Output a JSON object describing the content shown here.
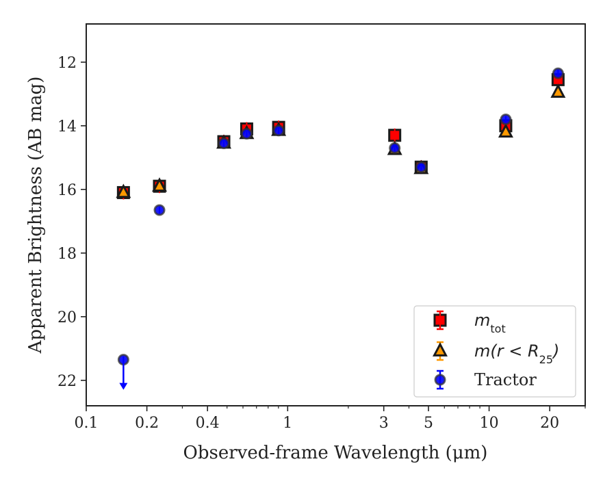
{
  "chart_data": {
    "type": "scatter",
    "xlabel": "Observed-frame Wavelength (μm)",
    "ylabel": "Apparent Brightness (AB mag)",
    "x_scale": "log",
    "y_inverted": true,
    "xlim": [
      0.1,
      30
    ],
    "ylim": [
      22.8,
      10.8
    ],
    "x_ticks": [
      0.1,
      0.2,
      0.4,
      1,
      3,
      5,
      10,
      20
    ],
    "x_tick_labels": [
      "0.1",
      "0.2",
      "0.4",
      "1",
      "3",
      "5",
      "10",
      "20"
    ],
    "y_ticks": [
      12,
      14,
      16,
      18,
      20,
      22
    ],
    "y_tick_labels": [
      "12",
      "14",
      "16",
      "18",
      "20",
      "22"
    ],
    "grid": false,
    "legend_position": "lower-right",
    "series": [
      {
        "name": "m_tot",
        "legend_label": "m",
        "legend_sub": "tot",
        "marker": "square",
        "color": "#ff0000",
        "edgecolor": "#1a1a1a",
        "x": [
          0.153,
          0.231,
          0.482,
          0.626,
          0.902,
          3.4,
          4.6,
          12.1,
          22.0
        ],
        "y": [
          16.1,
          15.9,
          14.5,
          14.1,
          14.05,
          14.3,
          15.3,
          14.0,
          12.55
        ]
      },
      {
        "name": "m(r < R25)",
        "legend_label": "m(r < R",
        "legend_sub": "25",
        "legend_close": ")",
        "marker": "triangle",
        "color": "#ff9900",
        "edgecolor": "#1a1a1a",
        "x": [
          0.153,
          0.231,
          0.482,
          0.626,
          0.902,
          3.4,
          4.6,
          12.1,
          22.0
        ],
        "y": [
          16.1,
          15.9,
          14.55,
          14.25,
          14.15,
          14.75,
          15.35,
          14.2,
          12.95
        ]
      },
      {
        "name": "Tractor",
        "legend_label": "Tractor",
        "marker": "circle",
        "color": "#0000ff",
        "edgecolor": "#333333",
        "x": [
          0.153,
          0.231,
          0.482,
          0.626,
          0.902,
          3.4,
          4.6,
          12.1,
          22.0
        ],
        "y": [
          21.35,
          16.65,
          14.55,
          14.25,
          14.15,
          14.7,
          15.3,
          13.8,
          12.35
        ],
        "upper_limit_index": 0
      }
    ]
  }
}
